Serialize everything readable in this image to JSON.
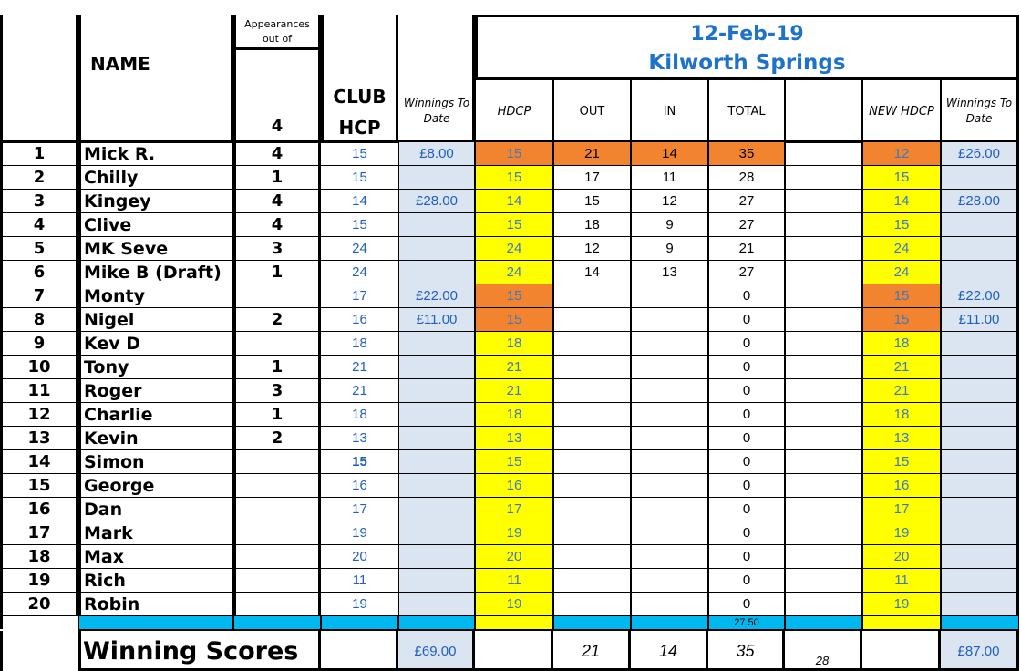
{
  "colors": {
    "handicap_cell": "#ffff00",
    "highlight_cell": "#f2842f",
    "winnings_cell": "#dbe5f1",
    "separator_band": "#00b8f0",
    "title_text": "#1e73c8",
    "value_text": "#1f5fbf"
  },
  "event": {
    "date": "12-Feb-19",
    "venue": "Kilworth Springs"
  },
  "headers": {
    "name": "NAME",
    "appearances_title": "Appearances out of",
    "appearances_total": "4",
    "club_hcp_line1": "CLUB",
    "club_hcp_line2": "HCP",
    "winnings_to_date": "Winnings To Date",
    "hdcp": "HDCP",
    "out": "OUT",
    "in": "IN",
    "total": "TOTAL",
    "blank": "",
    "new_hdcp": "NEW HDCP",
    "winnings_to_date_new": "Winnings To Date"
  },
  "players": [
    {
      "num": "1",
      "name": "Mick R.",
      "apps": "4",
      "club_hcp": "15",
      "winnings": "£8.00",
      "hdcp": "15",
      "out": "21",
      "in": "14",
      "total": "35",
      "extra": "",
      "new_hdcp": "12",
      "new_winnings": "£26.00",
      "hdcp_color": "orange",
      "scores_color": "orange",
      "new_hdcp_color": "orange"
    },
    {
      "num": "2",
      "name": "Chilly",
      "apps": "1",
      "club_hcp": "15",
      "winnings": "",
      "hdcp": "15",
      "out": "17",
      "in": "11",
      "total": "28",
      "extra": "",
      "new_hdcp": "15",
      "new_winnings": "",
      "hdcp_color": "yellow",
      "scores_color": "none",
      "new_hdcp_color": "yellow"
    },
    {
      "num": "3",
      "name": "Kingey",
      "apps": "4",
      "club_hcp": "14",
      "winnings": "£28.00",
      "hdcp": "14",
      "out": "15",
      "in": "12",
      "total": "27",
      "extra": "",
      "new_hdcp": "14",
      "new_winnings": "£28.00",
      "hdcp_color": "yellow",
      "scores_color": "none",
      "new_hdcp_color": "yellow"
    },
    {
      "num": "4",
      "name": "Clive",
      "apps": "4",
      "club_hcp": "15",
      "winnings": "",
      "hdcp": "15",
      "out": "18",
      "in": "9",
      "total": "27",
      "extra": "",
      "new_hdcp": "15",
      "new_winnings": "",
      "hdcp_color": "yellow",
      "scores_color": "none",
      "new_hdcp_color": "yellow"
    },
    {
      "num": "5",
      "name": "MK Seve",
      "apps": "3",
      "club_hcp": "24",
      "winnings": "",
      "hdcp": "24",
      "out": "12",
      "in": "9",
      "total": "21",
      "extra": "",
      "new_hdcp": "24",
      "new_winnings": "",
      "hdcp_color": "yellow",
      "scores_color": "none",
      "new_hdcp_color": "yellow"
    },
    {
      "num": "6",
      "name": "Mike B (Draft)",
      "apps": "1",
      "club_hcp": "24",
      "winnings": "",
      "hdcp": "24",
      "out": "14",
      "in": "13",
      "total": "27",
      "extra": "",
      "new_hdcp": "24",
      "new_winnings": "",
      "hdcp_color": "yellow",
      "scores_color": "none",
      "new_hdcp_color": "yellow"
    },
    {
      "num": "7",
      "name": "Monty",
      "apps": "",
      "club_hcp": "17",
      "winnings": "£22.00",
      "hdcp": "15",
      "out": "",
      "in": "",
      "total": "0",
      "extra": "",
      "new_hdcp": "15",
      "new_winnings": "£22.00",
      "hdcp_color": "orange",
      "scores_color": "none",
      "new_hdcp_color": "orange"
    },
    {
      "num": "8",
      "name": "Nigel",
      "apps": "2",
      "club_hcp": "16",
      "winnings": "£11.00",
      "hdcp": "15",
      "out": "",
      "in": "",
      "total": "0",
      "extra": "",
      "new_hdcp": "15",
      "new_winnings": "£11.00",
      "hdcp_color": "orange",
      "scores_color": "none",
      "new_hdcp_color": "orange"
    },
    {
      "num": "9",
      "name": "Kev D",
      "apps": "",
      "club_hcp": "18",
      "winnings": "",
      "hdcp": "18",
      "out": "",
      "in": "",
      "total": "0",
      "extra": "",
      "new_hdcp": "18",
      "new_winnings": "",
      "hdcp_color": "yellow",
      "scores_color": "none",
      "new_hdcp_color": "yellow"
    },
    {
      "num": "10",
      "name": "Tony",
      "apps": "1",
      "club_hcp": "21",
      "winnings": "",
      "hdcp": "21",
      "out": "",
      "in": "",
      "total": "0",
      "extra": "",
      "new_hdcp": "21",
      "new_winnings": "",
      "hdcp_color": "yellow",
      "scores_color": "none",
      "new_hdcp_color": "yellow"
    },
    {
      "num": "11",
      "name": "Roger",
      "apps": "3",
      "club_hcp": "21",
      "winnings": "",
      "hdcp": "21",
      "out": "",
      "in": "",
      "total": "0",
      "extra": "",
      "new_hdcp": "21",
      "new_winnings": "",
      "hdcp_color": "yellow",
      "scores_color": "none",
      "new_hdcp_color": "yellow"
    },
    {
      "num": "12",
      "name": "Charlie",
      "apps": "1",
      "club_hcp": "18",
      "winnings": "",
      "hdcp": "18",
      "out": "",
      "in": "",
      "total": "0",
      "extra": "",
      "new_hdcp": "18",
      "new_winnings": "",
      "hdcp_color": "yellow",
      "scores_color": "none",
      "new_hdcp_color": "yellow"
    },
    {
      "num": "13",
      "name": "Kevin",
      "apps": "2",
      "club_hcp": "13",
      "winnings": "",
      "hdcp": "13",
      "out": "",
      "in": "",
      "total": "0",
      "extra": "",
      "new_hdcp": "13",
      "new_winnings": "",
      "hdcp_color": "yellow",
      "scores_color": "none",
      "new_hdcp_color": "yellow"
    },
    {
      "num": "14",
      "name": "Simon",
      "apps": "",
      "club_hcp": "15",
      "winnings": "",
      "hdcp": "15",
      "out": "",
      "in": "",
      "total": "0",
      "extra": "",
      "new_hdcp": "15",
      "new_winnings": "",
      "hdcp_color": "yellow",
      "scores_color": "none",
      "new_hdcp_color": "yellow",
      "club_hcp_bold": true
    },
    {
      "num": "15",
      "name": "George",
      "apps": "",
      "club_hcp": "16",
      "winnings": "",
      "hdcp": "16",
      "out": "",
      "in": "",
      "total": "0",
      "extra": "",
      "new_hdcp": "16",
      "new_winnings": "",
      "hdcp_color": "yellow",
      "scores_color": "none",
      "new_hdcp_color": "yellow"
    },
    {
      "num": "16",
      "name": "Dan",
      "apps": "",
      "club_hcp": "17",
      "winnings": "",
      "hdcp": "17",
      "out": "",
      "in": "",
      "total": "0",
      "extra": "",
      "new_hdcp": "17",
      "new_winnings": "",
      "hdcp_color": "yellow",
      "scores_color": "none",
      "new_hdcp_color": "yellow"
    },
    {
      "num": "17",
      "name": "Mark",
      "apps": "",
      "club_hcp": "19",
      "winnings": "",
      "hdcp": "19",
      "out": "",
      "in": "",
      "total": "0",
      "extra": "",
      "new_hdcp": "19",
      "new_winnings": "",
      "hdcp_color": "yellow",
      "scores_color": "none",
      "new_hdcp_color": "yellow"
    },
    {
      "num": "18",
      "name": "Max",
      "apps": "",
      "club_hcp": "20",
      "winnings": "",
      "hdcp": "20",
      "out": "",
      "in": "",
      "total": "0",
      "extra": "",
      "new_hdcp": "20",
      "new_winnings": "",
      "hdcp_color": "yellow",
      "scores_color": "none",
      "new_hdcp_color": "yellow"
    },
    {
      "num": "19",
      "name": "Rich",
      "apps": "",
      "club_hcp": "11",
      "winnings": "",
      "hdcp": "11",
      "out": "",
      "in": "",
      "total": "0",
      "extra": "",
      "new_hdcp": "11",
      "new_winnings": "",
      "hdcp_color": "yellow",
      "scores_color": "none",
      "new_hdcp_color": "yellow"
    },
    {
      "num": "20",
      "name": "Robin",
      "apps": "",
      "club_hcp": "19",
      "winnings": "",
      "hdcp": "19",
      "out": "",
      "in": "",
      "total": "0",
      "extra": "",
      "new_hdcp": "19",
      "new_winnings": "",
      "hdcp_color": "yellow",
      "scores_color": "none",
      "new_hdcp_color": "yellow"
    }
  ],
  "band": {
    "total_value": "27.50"
  },
  "footer": {
    "label": "Winning Scores",
    "winnings": "£69.00",
    "out": "21",
    "in": "14",
    "total": "35",
    "extra": "28",
    "new_winnings": "£87.00"
  }
}
